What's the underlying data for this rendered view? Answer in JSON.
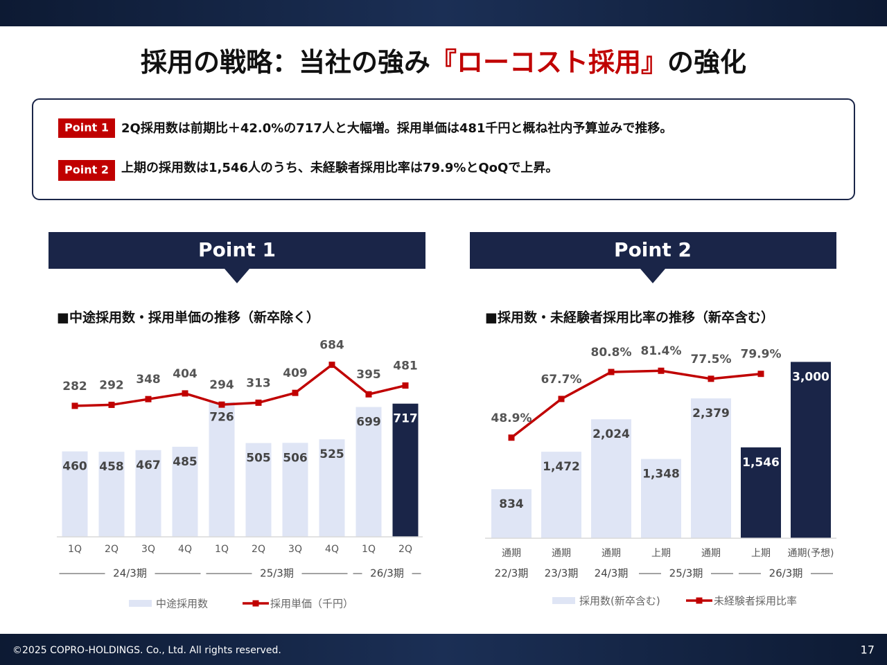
{
  "header": {
    "title_prefix": "採用の戦略：当社の強み",
    "title_highlight": "『ローコスト採用』",
    "title_suffix": "の強化"
  },
  "points": [
    {
      "label": "Point 1",
      "text": "2Q採用数は前期比＋42.0%の717人と大幅増。採用単価は481千円と概ね社内予算並みで推移。"
    },
    {
      "label": "Point 2",
      "text": "上期の採用数は1,546人のうち、未経験者採用比率は79.9%とQoQで上昇。"
    }
  ],
  "panels": [
    {
      "heading": "Point 1"
    },
    {
      "heading": "Point 2"
    }
  ],
  "chart_data": [
    {
      "type": "bar",
      "title": "■中途採用数・採用単価の推移（新卒除く）",
      "categories": [
        "1Q",
        "2Q",
        "3Q",
        "4Q",
        "1Q",
        "2Q",
        "3Q",
        "4Q",
        "1Q",
        "2Q"
      ],
      "groups": [
        {
          "label": "24/3期",
          "count": 4
        },
        {
          "label": "25/3期",
          "count": 4
        },
        {
          "label": "26/3期",
          "count": 2
        }
      ],
      "ylim": [
        0,
        1100
      ],
      "y2lim": [
        -1000,
        1000
      ],
      "series": [
        {
          "name": "中途採用数",
          "type": "bar",
          "color": "#dfe5f5",
          "colors": [
            "#dfe5f5",
            "#dfe5f5",
            "#dfe5f5",
            "#dfe5f5",
            "#dfe5f5",
            "#dfe5f5",
            "#dfe5f5",
            "#dfe5f5",
            "#dfe5f5",
            "#1a2548"
          ],
          "values": [
            460,
            458,
            467,
            485,
            726,
            505,
            506,
            525,
            699,
            717
          ]
        },
        {
          "name": "採用単価（千円）",
          "type": "line",
          "axis": "y2",
          "color": "#c00000",
          "values": [
            282,
            292,
            348,
            404,
            294,
            313,
            409,
            684,
            395,
            481
          ]
        }
      ]
    },
    {
      "type": "bar",
      "title": "■採用数・未経験者採用比率の推移（新卒含む）",
      "categories": [
        "通期",
        "通期",
        "通期",
        "上期",
        "通期",
        "上期",
        "通期(予想)"
      ],
      "groups": [
        {
          "label": "22/3期",
          "count": 1
        },
        {
          "label": "23/3期",
          "count": 1
        },
        {
          "label": "24/3期",
          "count": 1
        },
        {
          "label": "25/3期",
          "count": 2
        },
        {
          "label": "26/3期",
          "count": 2
        }
      ],
      "ylim": [
        0,
        3500
      ],
      "y2lim": [
        0,
        100
      ],
      "series": [
        {
          "name": "採用数(新卒含む)",
          "type": "bar",
          "color": "#dfe5f5",
          "colors": [
            "#dfe5f5",
            "#dfe5f5",
            "#dfe5f5",
            "#dfe5f5",
            "#dfe5f5",
            "#1a2548",
            "#1a2548"
          ],
          "values": [
            834,
            1472,
            2024,
            1348,
            2379,
            1546,
            3000
          ],
          "value_labels": [
            "834",
            "1,472",
            "2,024",
            "1,348",
            "2,379",
            "1,546",
            "3,000"
          ]
        },
        {
          "name": "未経験者採用比率",
          "type": "line",
          "axis": "y2",
          "color": "#c00000",
          "values": [
            48.9,
            67.7,
            80.8,
            81.4,
            77.5,
            79.9,
            null
          ],
          "value_labels": [
            "48.9%",
            "67.7%",
            "80.8%",
            "81.4%",
            "77.5%",
            "79.9%",
            null
          ]
        }
      ]
    }
  ],
  "footer": {
    "copyright": "©2025 COPRO-HOLDINGS. Co., Ltd. All rights reserved.",
    "page": "17"
  }
}
